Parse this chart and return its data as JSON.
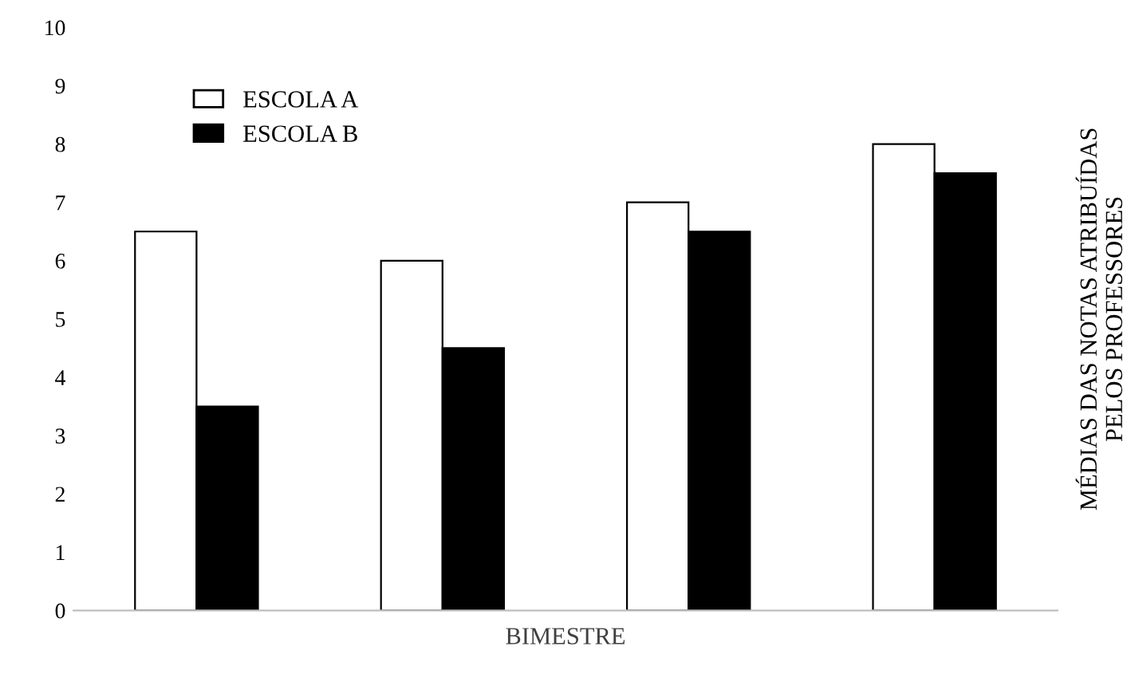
{
  "chart_data": {
    "type": "bar",
    "xlabel": "BIMESTRE",
    "ylabel": "MÉDIAS DAS NOTAS ATRIBUÍDAS\nPELOS PROFESSORES",
    "categories": [
      null,
      null,
      null,
      null
    ],
    "series": [
      {
        "name": "ESCOLA A",
        "color": "#ffffff",
        "values": [
          6.5,
          6,
          7,
          8
        ]
      },
      {
        "name": "ESCOLA B",
        "color": "#000000",
        "values": [
          3.5,
          4.5,
          6.5,
          7.5
        ]
      }
    ],
    "ylim": [
      0,
      10
    ],
    "yticks": [
      0,
      1,
      2,
      3,
      4,
      5,
      6,
      7,
      8,
      9,
      10
    ],
    "grid": false,
    "legend": "top left"
  }
}
